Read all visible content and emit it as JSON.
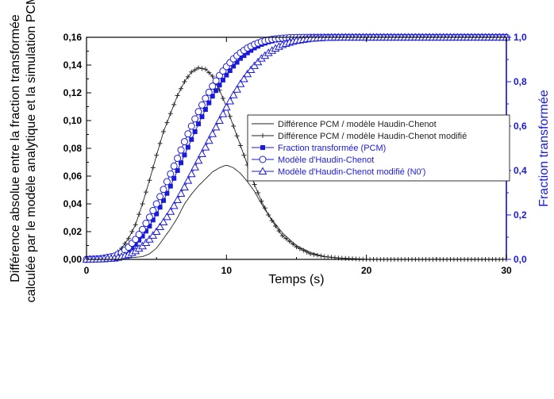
{
  "chart_data": {
    "type": "line",
    "title": "",
    "xlabel": "Temps (s)",
    "ylabel_left_lines": [
      "Différence absolue entre la fraction transformée",
      "calculée par le modèle analytique et la simulation PCM"
    ],
    "ylabel_right": "Fraction transformée",
    "xlim": [
      0,
      30
    ],
    "ylim_left": [
      0,
      0.16
    ],
    "ylim_right": [
      0,
      1.0
    ],
    "grid": false,
    "legend_position": "center-right",
    "x_ticks": [
      "0",
      "10",
      "20",
      "30"
    ],
    "y_left_ticks": [
      "0,00",
      "0,02",
      "0,04",
      "0,06",
      "0,08",
      "0,10",
      "0,12",
      "0,14",
      "0,16"
    ],
    "y_right_ticks": [
      "0,0",
      "0,2",
      "0,4",
      "0,6",
      "0,8",
      "1,0"
    ],
    "colors": {
      "left_axis": "#000000",
      "right_axis": "#1a1adb",
      "series_black": "#222222",
      "series_blue": "#1a1adb"
    },
    "series": [
      {
        "name": "Différence PCM / modèle Haudin-Chenot",
        "axis": "left",
        "marker": "none",
        "color": "#222222",
        "x": [
          0,
          1,
          2,
          3,
          4,
          4.5,
          5,
          5.5,
          6,
          6.5,
          7,
          7.5,
          8,
          8.5,
          9,
          9.5,
          10,
          10.5,
          11,
          11.5,
          12,
          12.5,
          13,
          14,
          15,
          16,
          17,
          18,
          19,
          20,
          25,
          30
        ],
        "values": [
          0,
          0,
          0,
          0.001,
          0.002,
          0.004,
          0.008,
          0.015,
          0.022,
          0.03,
          0.04,
          0.047,
          0.053,
          0.058,
          0.063,
          0.066,
          0.068,
          0.066,
          0.062,
          0.056,
          0.049,
          0.04,
          0.032,
          0.019,
          0.01,
          0.005,
          0.002,
          0.001,
          0.0005,
          0,
          0,
          0
        ]
      },
      {
        "name": "Différence PCM / modèle Haudin-Chenot modifié",
        "axis": "left",
        "marker": "plus",
        "color": "#222222",
        "x": [
          0,
          1,
          2,
          2.5,
          3,
          3.5,
          4,
          4.5,
          5,
          5.5,
          6,
          6.5,
          7,
          7.5,
          8,
          8.5,
          9,
          9.5,
          10,
          10.5,
          11,
          11.5,
          12,
          12.5,
          13,
          13.5,
          14,
          15,
          16,
          17,
          18,
          19,
          20,
          25,
          30
        ],
        "values": [
          0,
          0.001,
          0.003,
          0.008,
          0.015,
          0.025,
          0.04,
          0.057,
          0.075,
          0.092,
          0.105,
          0.118,
          0.128,
          0.135,
          0.138,
          0.137,
          0.132,
          0.122,
          0.11,
          0.096,
          0.082,
          0.068,
          0.054,
          0.042,
          0.032,
          0.024,
          0.017,
          0.009,
          0.004,
          0.002,
          0.001,
          0.0005,
          0,
          0,
          0
        ]
      },
      {
        "name": "Fraction transformée (PCM)",
        "axis": "right",
        "marker": "filled-square",
        "color": "#1a1adb",
        "x": [
          0,
          1,
          2,
          2.5,
          3,
          3.5,
          4,
          4.5,
          5,
          5.5,
          6,
          6.5,
          7,
          7.5,
          8,
          8.5,
          9,
          9.5,
          10,
          10.5,
          11,
          11.5,
          12,
          12.5,
          13,
          13.5,
          14,
          14.5,
          15,
          16,
          17,
          18,
          20,
          25,
          30
        ],
        "values": [
          0,
          0.002,
          0.01,
          0.022,
          0.04,
          0.068,
          0.105,
          0.15,
          0.205,
          0.265,
          0.33,
          0.4,
          0.47,
          0.54,
          0.61,
          0.675,
          0.735,
          0.785,
          0.83,
          0.87,
          0.905,
          0.93,
          0.952,
          0.968,
          0.979,
          0.987,
          0.992,
          0.995,
          0.997,
          0.999,
          1,
          1,
          1,
          1,
          1
        ]
      },
      {
        "name": "Modèle d'Haudin-Chenot",
        "axis": "right",
        "marker": "open-circle",
        "color": "#1a1adb",
        "x": [
          0,
          1,
          2,
          2.5,
          3,
          3.5,
          4,
          4.5,
          5,
          5.5,
          6,
          6.5,
          7,
          7.5,
          8,
          8.5,
          9,
          9.5,
          10,
          10.5,
          11,
          11.5,
          12,
          12.5,
          13,
          13.5,
          14,
          14.5,
          15,
          16,
          17,
          18,
          20,
          25,
          30
        ],
        "values": [
          0,
          0.003,
          0.015,
          0.03,
          0.055,
          0.09,
          0.135,
          0.19,
          0.25,
          0.315,
          0.385,
          0.455,
          0.53,
          0.6,
          0.665,
          0.725,
          0.78,
          0.828,
          0.868,
          0.903,
          0.93,
          0.952,
          0.968,
          0.98,
          0.988,
          0.993,
          0.996,
          0.998,
          0.999,
          1,
          1,
          1,
          1,
          1,
          1
        ]
      },
      {
        "name": "Modèle d'Haudin-Chenot modifié (N0')",
        "axis": "right",
        "marker": "open-triangle",
        "color": "#1a1adb",
        "x": [
          0,
          1,
          2,
          2.5,
          3,
          3.5,
          4,
          4.5,
          5,
          5.5,
          6,
          6.5,
          7,
          7.5,
          8,
          8.5,
          9,
          9.5,
          10,
          10.5,
          11,
          11.5,
          12,
          12.5,
          13,
          13.5,
          14,
          14.5,
          15,
          16,
          17,
          18,
          20,
          25,
          30
        ],
        "values": [
          0,
          0.001,
          0.005,
          0.012,
          0.022,
          0.038,
          0.06,
          0.09,
          0.125,
          0.168,
          0.215,
          0.268,
          0.325,
          0.385,
          0.445,
          0.505,
          0.565,
          0.625,
          0.685,
          0.74,
          0.79,
          0.835,
          0.872,
          0.905,
          0.93,
          0.95,
          0.966,
          0.977,
          0.985,
          0.994,
          0.998,
          1,
          1,
          1,
          1
        ]
      }
    ]
  }
}
